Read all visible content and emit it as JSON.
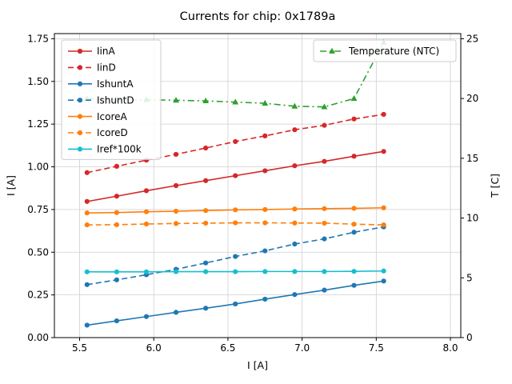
{
  "chart_data": {
    "type": "line",
    "title": "Currents for chip: 0x1789a",
    "xlabel": "I [A]",
    "ylabel_left": "I [A]",
    "ylabel_right": "T [C]",
    "xlim": [
      5.33,
      8.07
    ],
    "ylim_left": [
      0,
      1.78
    ],
    "ylim_right": [
      0,
      25.43
    ],
    "grid": true,
    "legend_left_position": "upper left",
    "legend_right_position": "upper right",
    "x_ticks": [
      5.5,
      6.0,
      6.5,
      7.0,
      7.5,
      8.0
    ],
    "x_tick_labels": [
      "5.5",
      "6.0",
      "6.5",
      "7.0",
      "7.5",
      "8.0"
    ],
    "y_ticks_left": [
      0,
      0.25,
      0.5,
      0.75,
      1.0,
      1.25,
      1.5,
      1.75
    ],
    "y_tick_labels_left": [
      "0.00",
      "0.25",
      "0.50",
      "0.75",
      "1.00",
      "1.25",
      "1.50",
      "1.75"
    ],
    "y_ticks_right": [
      0,
      5,
      10,
      15,
      20,
      25
    ],
    "y_tick_labels_right": [
      "0",
      "5",
      "10",
      "15",
      "20",
      "25"
    ],
    "x": [
      5.55,
      5.75,
      5.95,
      6.15,
      6.35,
      6.55,
      6.75,
      6.95,
      7.15,
      7.35,
      7.55
    ],
    "series": [
      {
        "name": "IinA",
        "axis": "left",
        "color": "#d62728",
        "style": "solid",
        "marker": "circle",
        "legend": "left",
        "values": [
          0.797,
          0.828,
          0.86,
          0.89,
          0.919,
          0.948,
          0.977,
          1.006,
          1.032,
          1.062,
          1.09
        ]
      },
      {
        "name": "IinD",
        "axis": "left",
        "color": "#d62728",
        "style": "dashed",
        "marker": "circle",
        "legend": "left",
        "values": [
          0.966,
          1.003,
          1.039,
          1.073,
          1.11,
          1.148,
          1.181,
          1.217,
          1.243,
          1.28,
          1.307
        ]
      },
      {
        "name": "IshuntA",
        "axis": "left",
        "color": "#1f77b4",
        "style": "solid",
        "marker": "circle",
        "legend": "left",
        "values": [
          0.073,
          0.098,
          0.123,
          0.148,
          0.172,
          0.197,
          0.225,
          0.252,
          0.278,
          0.306,
          0.331
        ]
      },
      {
        "name": "IshuntD",
        "axis": "left",
        "color": "#1f77b4",
        "style": "dashed",
        "marker": "circle",
        "legend": "left",
        "values": [
          0.31,
          0.338,
          0.368,
          0.4,
          0.437,
          0.475,
          0.508,
          0.548,
          0.578,
          0.617,
          0.648
        ]
      },
      {
        "name": "IcoreA",
        "axis": "left",
        "color": "#ff7f0e",
        "style": "solid",
        "marker": "circle",
        "legend": "left",
        "values": [
          0.73,
          0.732,
          0.737,
          0.74,
          0.744,
          0.748,
          0.75,
          0.753,
          0.755,
          0.757,
          0.76
        ]
      },
      {
        "name": "IcoreD",
        "axis": "left",
        "color": "#ff7f0e",
        "style": "dashed",
        "marker": "circle",
        "legend": "left",
        "values": [
          0.66,
          0.661,
          0.665,
          0.668,
          0.67,
          0.672,
          0.672,
          0.671,
          0.67,
          0.664,
          0.66
        ]
      },
      {
        "name": "Iref*100k",
        "axis": "left",
        "color": "#17becf",
        "style": "solid",
        "marker": "circle",
        "legend": "left",
        "values": [
          0.385,
          0.385,
          0.385,
          0.386,
          0.386,
          0.386,
          0.387,
          0.387,
          0.387,
          0.388,
          0.39
        ]
      },
      {
        "name": "Temperature (NTC)",
        "axis": "right",
        "color": "#2ca02c",
        "style": "dashdot",
        "marker": "triangle",
        "legend": "right",
        "values": [
          20.0,
          19.9,
          19.9,
          19.85,
          19.8,
          19.7,
          19.6,
          19.35,
          19.3,
          20.0,
          24.7
        ]
      }
    ]
  }
}
